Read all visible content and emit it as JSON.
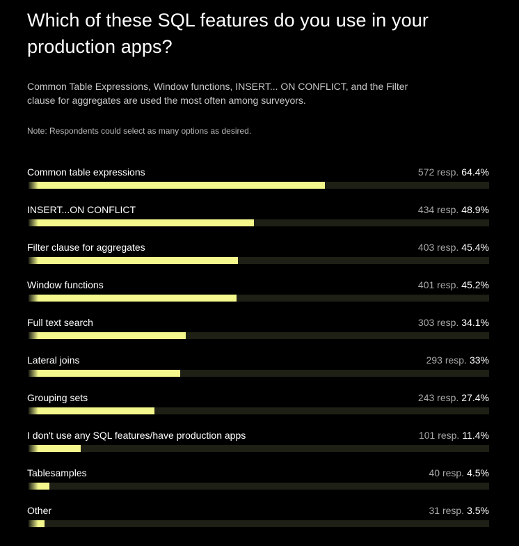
{
  "title": "Which of these SQL features do you use in your production apps?",
  "subtitle": "Common Table Expressions, Window functions, INSERT... ON CONFLICT, and the Filter clause for aggregates are used the most often among surveyors.",
  "note": "Note: Respondents could select as many options as desired.",
  "colors": {
    "background": "#000000",
    "bar": "#f4f88c",
    "track": "#1e2015"
  },
  "chart_data": {
    "type": "bar",
    "orientation": "horizontal",
    "categories": [
      "Common table expressions",
      "INSERT...ON CONFLICT",
      "Filter clause for aggregates",
      "Window functions",
      "Full text search",
      "Lateral joins",
      "Grouping sets",
      "I don't use any SQL features/have production apps",
      "Tablesamples",
      "Other"
    ],
    "responses": [
      572,
      434,
      403,
      401,
      303,
      293,
      243,
      101,
      40,
      31
    ],
    "response_labels": [
      "572 resp.",
      "434 resp.",
      "403 resp.",
      "401 resp.",
      "303 resp.",
      "293 resp.",
      "243 resp.",
      "101 resp.",
      "40 resp.",
      "31 resp."
    ],
    "values": [
      64.4,
      48.9,
      45.4,
      45.2,
      34.1,
      33,
      27.4,
      11.4,
      4.5,
      3.5
    ],
    "value_labels": [
      "64.4%",
      "48.9%",
      "45.4%",
      "45.2%",
      "34.1%",
      "33%",
      "27.4%",
      "11.4%",
      "4.5%",
      "3.5%"
    ],
    "xlim": [
      0,
      100
    ],
    "grid": false,
    "legend": "none"
  }
}
